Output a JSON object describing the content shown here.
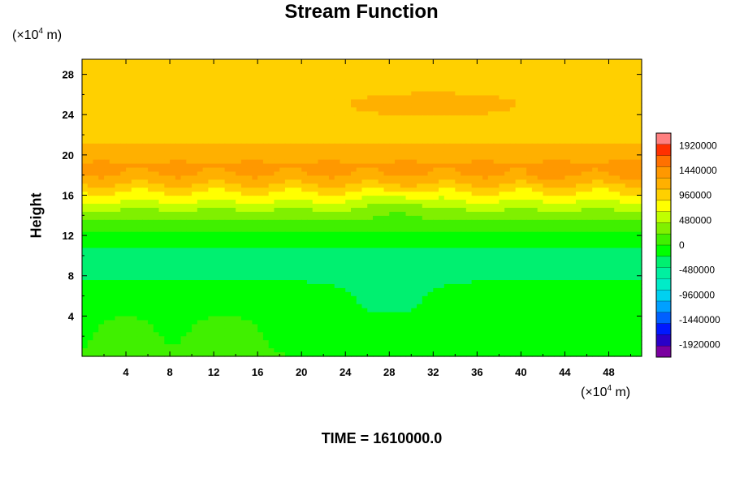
{
  "chart_data": {
    "type": "heatmap",
    "title": "Stream Function",
    "xlabel": "",
    "ylabel": "Height",
    "x_unit_prefix": "(×10",
    "x_unit_exp": "4",
    "x_unit_suffix": " m)",
    "y_unit_prefix": "(×10",
    "y_unit_exp": "4",
    "y_unit_suffix": " m)",
    "xlim": [
      0,
      51
    ],
    "ylim": [
      0,
      29.5
    ],
    "xticks": [
      4,
      8,
      12,
      16,
      20,
      24,
      28,
      32,
      36,
      40,
      44,
      48
    ],
    "yticks": [
      4,
      8,
      12,
      16,
      20,
      24,
      28
    ],
    "colorbar": {
      "min": -2160000,
      "max": 2160000,
      "tick_values": [
        1920000,
        1440000,
        960000,
        480000,
        0,
        -480000,
        -960000,
        -1440000,
        -1920000
      ],
      "tick_labels": [
        "1920000",
        "1440000",
        "960000",
        "480000",
        "0",
        "-480000",
        "-960000",
        "-1440000",
        "-1920000"
      ]
    },
    "z_profile_by_height": [
      {
        "y": 0,
        "z": 0
      },
      {
        "y": 4,
        "z": -60000
      },
      {
        "y": 8,
        "z": -240000
      },
      {
        "y": 10,
        "z": -300000
      },
      {
        "y": 12,
        "z": -60000
      },
      {
        "y": 14,
        "z": 300000
      },
      {
        "y": 16,
        "z": 800000
      },
      {
        "y": 18,
        "z": 1300000
      },
      {
        "y": 19,
        "z": 1330000
      },
      {
        "y": 21,
        "z": 1080000
      },
      {
        "y": 24,
        "z": 1040000
      },
      {
        "y": 29.5,
        "z": 1040000
      }
    ],
    "anomalies": [
      {
        "x": 4,
        "y": 1.5,
        "rx": 2.5,
        "ry": 3,
        "dz": 130000
      },
      {
        "x": 13,
        "y": 2,
        "rx": 3,
        "ry": 2.5,
        "dz": 130000
      },
      {
        "x": 28,
        "y": 4.5,
        "rx": 5,
        "ry": 2.5,
        "dz": -150000
      },
      {
        "x": 32,
        "y": 25,
        "rx": 8,
        "ry": 1.2,
        "dz": 100000
      },
      {
        "x": 29,
        "y": 15,
        "rx": 2.5,
        "ry": 1.2,
        "dz": -250000
      },
      {
        "x": 42,
        "y": 18,
        "rx": 1.2,
        "ry": 0.8,
        "dz": 150000
      },
      {
        "x": 50,
        "y": 18.5,
        "rx": 2,
        "ry": 1,
        "dz": 120000
      }
    ],
    "time_label": "TIME = 1610000.0"
  }
}
